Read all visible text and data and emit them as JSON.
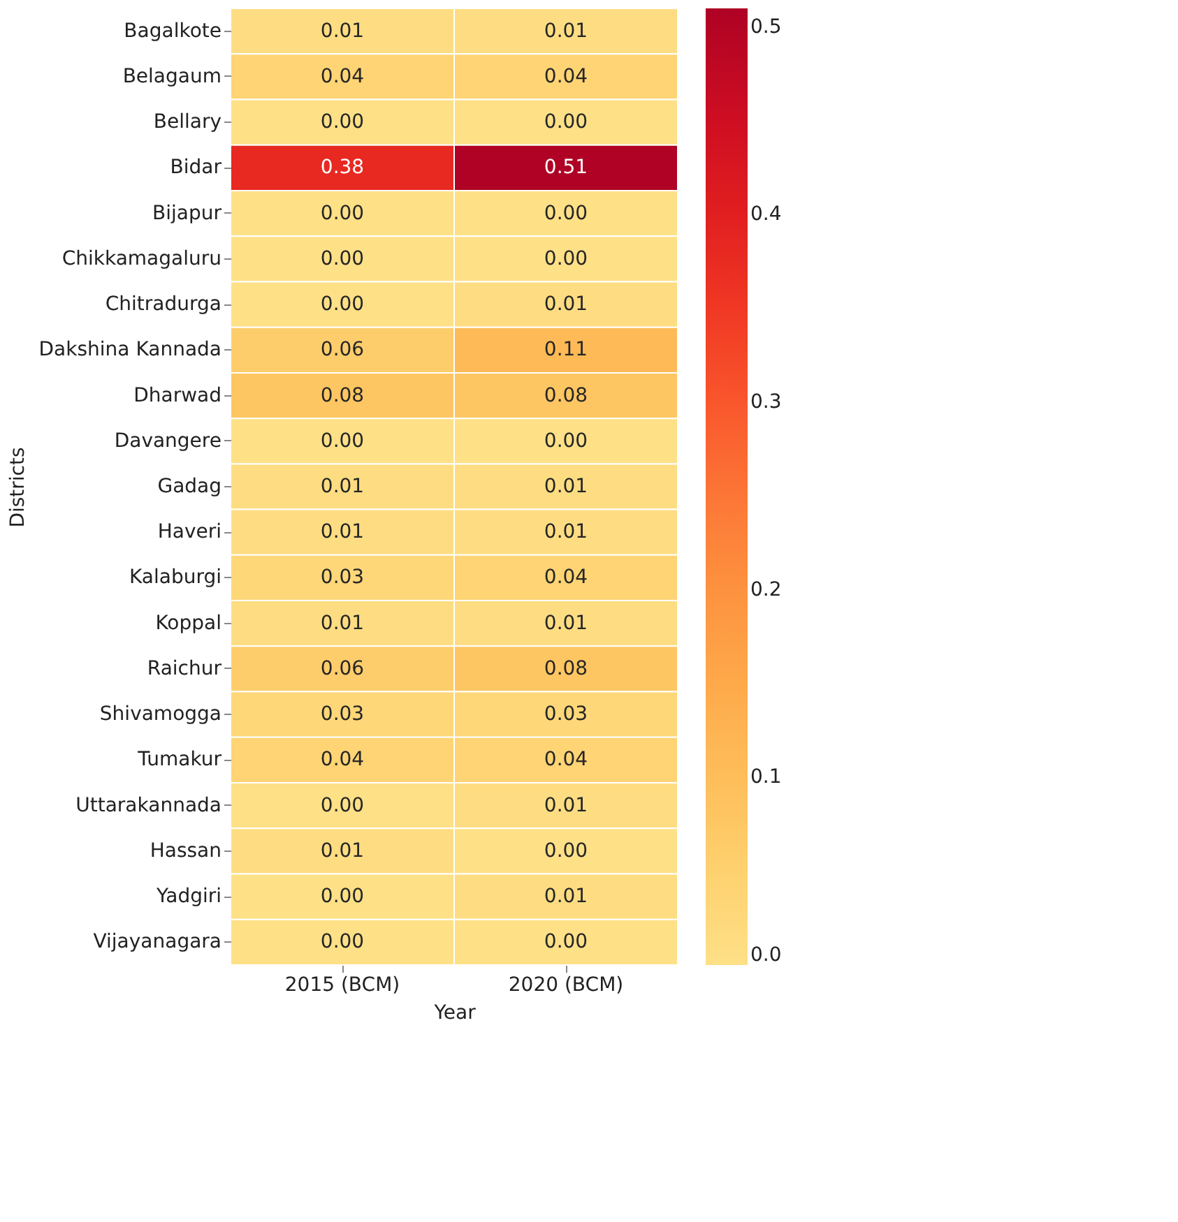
{
  "chart_data": {
    "type": "heatmap",
    "xlabel": "Year",
    "ylabel": "Districts",
    "categories": [
      "2015 (BCM)",
      "2020 (BCM)"
    ],
    "y_categories": [
      "Bagalkote",
      "Belagaum",
      "Bellary",
      "Bidar",
      "Bijapur",
      "Chikkamagaluru",
      "Chitradurga",
      "Dakshina Kannada",
      "Dharwad",
      "Davangere",
      "Gadag",
      "Haveri",
      "Kalaburgi",
      "Koppal",
      "Raichur",
      "Shivamogga",
      "Tumakur",
      "Uttarakannada",
      "Hassan",
      "Yadgiri",
      "Vijayanagara"
    ],
    "cells": [
      [
        0.01,
        0.01
      ],
      [
        0.04,
        0.04
      ],
      [
        0.0,
        0.0
      ],
      [
        0.38,
        0.51
      ],
      [
        0.0,
        0.0
      ],
      [
        0.0,
        0.0
      ],
      [
        0.0,
        0.01
      ],
      [
        0.06,
        0.11
      ],
      [
        0.08,
        0.08
      ],
      [
        0.0,
        0.0
      ],
      [
        0.01,
        0.01
      ],
      [
        0.01,
        0.01
      ],
      [
        0.03,
        0.04
      ],
      [
        0.01,
        0.01
      ],
      [
        0.06,
        0.08
      ],
      [
        0.03,
        0.03
      ],
      [
        0.04,
        0.04
      ],
      [
        0.0,
        0.01
      ],
      [
        0.01,
        0.0
      ],
      [
        0.0,
        0.01
      ],
      [
        0.0,
        0.0
      ]
    ],
    "cell_labels": [
      [
        "0.01",
        "0.01"
      ],
      [
        "0.04",
        "0.04"
      ],
      [
        "0.00",
        "0.00"
      ],
      [
        "0.38",
        "0.51"
      ],
      [
        "0.00",
        "0.00"
      ],
      [
        "0.00",
        "0.00"
      ],
      [
        "0.00",
        "0.01"
      ],
      [
        "0.06",
        "0.11"
      ],
      [
        "0.08",
        "0.08"
      ],
      [
        "0.00",
        "0.00"
      ],
      [
        "0.01",
        "0.01"
      ],
      [
        "0.01",
        "0.01"
      ],
      [
        "0.03",
        "0.04"
      ],
      [
        "0.01",
        "0.01"
      ],
      [
        "0.06",
        "0.08"
      ],
      [
        "0.03",
        "0.03"
      ],
      [
        "0.04",
        "0.04"
      ],
      [
        "0.00",
        "0.01"
      ],
      [
        "0.01",
        "0.00"
      ],
      [
        "0.00",
        "0.01"
      ],
      [
        "0.00",
        "0.00"
      ]
    ],
    "clim": [
      0,
      0.51
    ],
    "cticks": [
      {
        "value": 0,
        "label": "0.0"
      },
      0.1,
      0.2,
      0.3,
      0.4,
      0.5
    ]
  }
}
